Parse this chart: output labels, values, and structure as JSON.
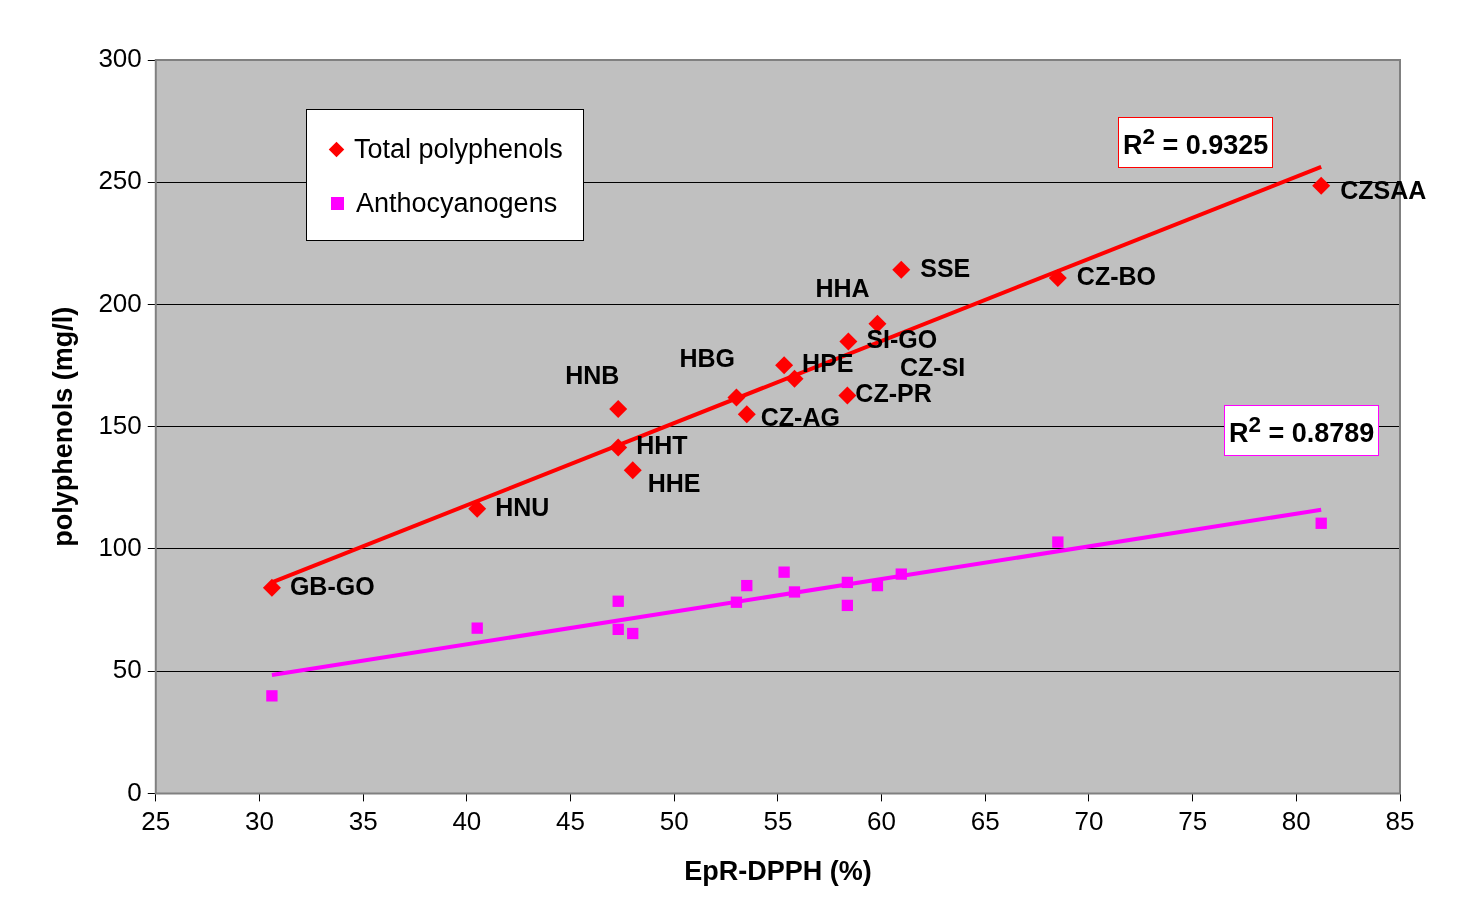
{
  "chart_data": {
    "type": "scatter",
    "xlabel": "EpR-DPPH (%)",
    "ylabel": "polyphenols (mg/l)",
    "xlim": [
      25,
      85
    ],
    "xticks": [
      25,
      30,
      35,
      40,
      45,
      50,
      55,
      60,
      65,
      70,
      75,
      80,
      85
    ],
    "ylim": [
      0,
      300
    ],
    "yticks": [
      0,
      50,
      100,
      150,
      200,
      250,
      300
    ],
    "grid": "y",
    "legend": "top left",
    "series": [
      {
        "name": "Total polyphenols",
        "color": "#ff0000",
        "marker": "diamond",
        "x": [
          30.6,
          40.5,
          47.3,
          47.3,
          48.0,
          53.0,
          55.8,
          53.5,
          55.3,
          58.4,
          58.35,
          59.8,
          60.95,
          68.5,
          81.2
        ],
        "values": [
          84.1,
          116.4,
          157.2,
          141.5,
          132.2,
          161.9,
          169.6,
          155.1,
          175.1,
          184.9,
          162.8,
          192.1,
          214.2,
          210.8,
          248.6
        ]
      },
      {
        "name": "Anthocyanogens",
        "color": "#ff00ff",
        "marker": "square",
        "x": [
          30.6,
          40.5,
          47.3,
          47.3,
          48.0,
          53.0,
          53.5,
          55.3,
          55.8,
          58.35,
          58.35,
          59.8,
          60.95,
          68.5,
          81.2
        ],
        "values": [
          39.9,
          67.6,
          78.6,
          67.1,
          65.4,
          78.2,
          85.0,
          90.5,
          82.4,
          86.3,
          76.9,
          85.0,
          89.7,
          102.8,
          110.5
        ]
      },
      {
        "type": "line",
        "color": "#ff0000",
        "marker": "none",
        "x": [
          30.6,
          81.2
        ],
        "values": [
          86.3,
          256.3
        ]
      },
      {
        "type": "line",
        "color": "#ff00ff",
        "marker": "none",
        "x": [
          30.6,
          81.2
        ],
        "values": [
          48.4,
          116.0
        ]
      }
    ],
    "annotations": [
      {
        "text": "GB-GO",
        "x": 30.6,
        "y": 84.1
      },
      {
        "text": "HNU",
        "x": 40.5,
        "y": 116.4
      },
      {
        "text": "HNB",
        "x": 47.3,
        "y": 157.2
      },
      {
        "text": "HHT",
        "x": 47.3,
        "y": 141.5
      },
      {
        "text": "HHE",
        "x": 48.0,
        "y": 132.2
      },
      {
        "text": "HBG",
        "x": 53.0,
        "y": 161.9
      },
      {
        "text": "CZ-AG",
        "x": 53.5,
        "y": 155.1
      },
      {
        "text": "HPE",
        "x": 55.3,
        "y": 175.1
      },
      {
        "text": "SI-GO",
        "x": 58.4,
        "y": 184.9
      },
      {
        "text": "CZ-PR",
        "x": 58.35,
        "y": 162.8
      },
      {
        "text": "HHA",
        "x": 59.8,
        "y": 192.1
      },
      {
        "text": "SSE",
        "x": 60.95,
        "y": 214.2
      },
      {
        "text": "CZ-BO",
        "x": 68.5,
        "y": 210.8
      },
      {
        "text": "CZSAA",
        "x": 81.2,
        "y": 248.6
      },
      "R$^{2}$ = 0.9325",
      "R$^{2}$ = 0.8789",
      "CZ-SI"
    ]
  }
}
